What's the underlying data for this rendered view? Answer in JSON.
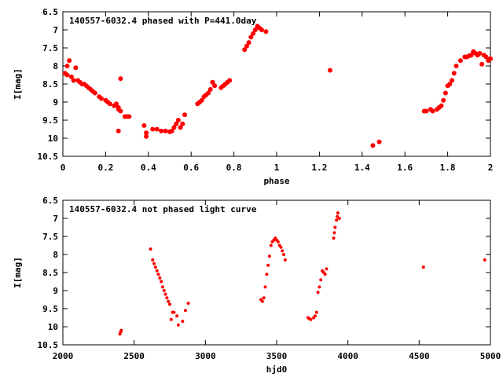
{
  "chart_data": [
    {
      "type": "scatter",
      "title": "140557-6032.4 phased with P=441.0day",
      "xlabel": "phase",
      "ylabel": "I[mag]",
      "xlim": [
        0,
        2
      ],
      "ylim": [
        10.5,
        6.5
      ],
      "y_inverted": true,
      "grid": false,
      "marker_color": "#ff0000",
      "x_ticks": [
        0,
        0.2,
        0.4,
        0.6,
        0.8,
        1,
        1.2,
        1.4,
        1.6,
        1.8,
        2
      ],
      "x_tick_labels": [
        "0",
        "0.2",
        "0.4",
        "0.6",
        "0.8",
        "1",
        "1.2",
        "1.4",
        "1.6",
        "1.8",
        "2"
      ],
      "y_ticks": [
        6.5,
        7,
        7.5,
        8,
        8.5,
        9,
        9.5,
        10,
        10.5
      ],
      "y_tick_labels": [
        "6.5",
        "7",
        "7.5",
        "8",
        "8.5",
        "9",
        "9.5",
        "10",
        "10.5"
      ],
      "points": [
        [
          0.01,
          8.2
        ],
        [
          0.02,
          8.25
        ],
        [
          0.02,
          8.0
        ],
        [
          0.03,
          7.85
        ],
        [
          0.04,
          8.3
        ],
        [
          0.05,
          8.4
        ],
        [
          0.06,
          8.05
        ],
        [
          0.07,
          8.4
        ],
        [
          0.08,
          8.45
        ],
        [
          0.09,
          8.5
        ],
        [
          0.1,
          8.5
        ],
        [
          0.11,
          8.55
        ],
        [
          0.12,
          8.6
        ],
        [
          0.13,
          8.65
        ],
        [
          0.14,
          8.7
        ],
        [
          0.15,
          8.75
        ],
        [
          0.17,
          8.85
        ],
        [
          0.18,
          8.9
        ],
        [
          0.2,
          8.95
        ],
        [
          0.21,
          9.0
        ],
        [
          0.22,
          9.05
        ],
        [
          0.24,
          9.1
        ],
        [
          0.25,
          9.05
        ],
        [
          0.26,
          9.15
        ],
        [
          0.26,
          9.2
        ],
        [
          0.27,
          9.25
        ],
        [
          0.26,
          9.8
        ],
        [
          0.27,
          8.35
        ],
        [
          0.29,
          9.4
        ],
        [
          0.3,
          9.4
        ],
        [
          0.31,
          9.4
        ],
        [
          0.38,
          9.65
        ],
        [
          0.39,
          9.85
        ],
        [
          0.39,
          9.95
        ],
        [
          0.42,
          9.75
        ],
        [
          0.44,
          9.75
        ],
        [
          0.46,
          9.8
        ],
        [
          0.48,
          9.8
        ],
        [
          0.5,
          9.82
        ],
        [
          0.51,
          9.8
        ],
        [
          0.52,
          9.7
        ],
        [
          0.53,
          9.6
        ],
        [
          0.54,
          9.5
        ],
        [
          0.55,
          9.7
        ],
        [
          0.56,
          9.6
        ],
        [
          0.57,
          9.35
        ],
        [
          0.63,
          9.05
        ],
        [
          0.64,
          9.0
        ],
        [
          0.65,
          8.95
        ],
        [
          0.66,
          8.85
        ],
        [
          0.67,
          8.8
        ],
        [
          0.68,
          8.75
        ],
        [
          0.69,
          8.65
        ],
        [
          0.7,
          8.45
        ],
        [
          0.71,
          8.55
        ],
        [
          0.74,
          8.6
        ],
        [
          0.75,
          8.55
        ],
        [
          0.76,
          8.5
        ],
        [
          0.77,
          8.45
        ],
        [
          0.78,
          8.4
        ],
        [
          0.85,
          7.55
        ],
        [
          0.86,
          7.45
        ],
        [
          0.87,
          7.35
        ],
        [
          0.88,
          7.2
        ],
        [
          0.89,
          7.1
        ],
        [
          0.9,
          7.0
        ],
        [
          0.91,
          6.9
        ],
        [
          0.92,
          6.95
        ],
        [
          0.93,
          7.0
        ],
        [
          0.95,
          7.05
        ],
        [
          1.25,
          8.12
        ],
        [
          1.45,
          10.2
        ],
        [
          1.48,
          10.1
        ],
        [
          1.69,
          9.25
        ],
        [
          1.7,
          9.25
        ],
        [
          1.72,
          9.2
        ],
        [
          1.73,
          9.25
        ],
        [
          1.75,
          9.2
        ],
        [
          1.76,
          9.15
        ],
        [
          1.77,
          9.1
        ],
        [
          1.78,
          8.95
        ],
        [
          1.79,
          8.75
        ],
        [
          1.8,
          8.55
        ],
        [
          1.81,
          8.5
        ],
        [
          1.82,
          8.4
        ],
        [
          1.83,
          8.2
        ],
        [
          1.84,
          8.0
        ],
        [
          1.86,
          7.85
        ],
        [
          1.88,
          7.75
        ],
        [
          1.89,
          7.75
        ],
        [
          1.9,
          7.72
        ],
        [
          1.91,
          7.7
        ],
        [
          1.92,
          7.6
        ],
        [
          1.93,
          7.65
        ],
        [
          1.94,
          7.7
        ],
        [
          1.95,
          7.65
        ],
        [
          1.96,
          7.95
        ],
        [
          1.97,
          7.7
        ],
        [
          1.98,
          7.75
        ],
        [
          1.99,
          7.85
        ],
        [
          2.0,
          7.8
        ]
      ]
    },
    {
      "type": "scatter",
      "title": "140557-6032.4 not phased light curve",
      "xlabel": "hjd0",
      "ylabel": "I[mag]",
      "xlim": [
        2000,
        5000
      ],
      "ylim": [
        10.5,
        6.5
      ],
      "y_inverted": true,
      "grid": false,
      "marker_color": "#ff0000",
      "x_ticks": [
        2000,
        2500,
        3000,
        3500,
        4000,
        4500,
        5000
      ],
      "x_tick_labels": [
        "2000",
        "2500",
        "3000",
        "3500",
        "4000",
        "4500",
        "5000"
      ],
      "y_ticks": [
        6.5,
        7,
        7.5,
        8,
        8.5,
        9,
        9.5,
        10,
        10.5
      ],
      "y_tick_labels": [
        "6.5",
        "7",
        "7.5",
        "8",
        "8.5",
        "9",
        "9.5",
        "10",
        "10.5"
      ],
      "points": [
        [
          2400,
          10.2
        ],
        [
          2405,
          10.15
        ],
        [
          2410,
          10.1
        ],
        [
          2615,
          7.85
        ],
        [
          2630,
          8.15
        ],
        [
          2640,
          8.25
        ],
        [
          2650,
          8.35
        ],
        [
          2660,
          8.45
        ],
        [
          2670,
          8.55
        ],
        [
          2680,
          8.65
        ],
        [
          2690,
          8.75
        ],
        [
          2700,
          8.9
        ],
        [
          2710,
          9.0
        ],
        [
          2720,
          9.1
        ],
        [
          2730,
          9.2
        ],
        [
          2740,
          9.3
        ],
        [
          2750,
          9.38
        ],
        [
          2760,
          9.8
        ],
        [
          2770,
          9.6
        ],
        [
          2780,
          9.6
        ],
        [
          2800,
          9.7
        ],
        [
          2810,
          9.95
        ],
        [
          2840,
          9.85
        ],
        [
          2860,
          9.55
        ],
        [
          2880,
          9.35
        ],
        [
          3390,
          9.25
        ],
        [
          3400,
          9.3
        ],
        [
          3410,
          9.2
        ],
        [
          3420,
          8.9
        ],
        [
          3430,
          8.55
        ],
        [
          3440,
          8.3
        ],
        [
          3450,
          8.05
        ],
        [
          3460,
          7.75
        ],
        [
          3470,
          7.65
        ],
        [
          3480,
          7.6
        ],
        [
          3490,
          7.55
        ],
        [
          3500,
          7.6
        ],
        [
          3510,
          7.65
        ],
        [
          3520,
          7.75
        ],
        [
          3530,
          7.8
        ],
        [
          3540,
          7.9
        ],
        [
          3550,
          8.0
        ],
        [
          3560,
          8.15
        ],
        [
          3720,
          9.75
        ],
        [
          3730,
          9.78
        ],
        [
          3740,
          9.8
        ],
        [
          3760,
          9.75
        ],
        [
          3770,
          9.7
        ],
        [
          3780,
          9.6
        ],
        [
          3790,
          9.05
        ],
        [
          3800,
          8.9
        ],
        [
          3810,
          8.7
        ],
        [
          3820,
          8.45
        ],
        [
          3830,
          8.5
        ],
        [
          3840,
          8.55
        ],
        [
          3850,
          8.4
        ],
        [
          3900,
          7.55
        ],
        [
          3905,
          7.4
        ],
        [
          3910,
          7.25
        ],
        [
          3920,
          7.05
        ],
        [
          3925,
          6.95
        ],
        [
          3930,
          6.85
        ],
        [
          3940,
          7.0
        ],
        [
          4530,
          8.35
        ],
        [
          4960,
          8.15
        ]
      ]
    }
  ]
}
